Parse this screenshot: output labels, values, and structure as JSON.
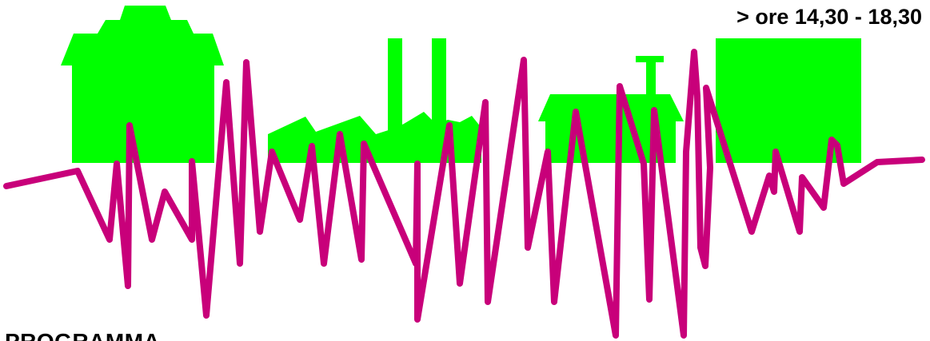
{
  "header": {
    "time_range": "> ore 14,30 - 18,30"
  },
  "footer": {
    "section_title": "PROGRAMMA"
  },
  "colors": {
    "buildings": "#00ff00",
    "seismic_line": "#c8007a",
    "background": "#ffffff",
    "text": "#000000"
  },
  "icons": {
    "skyline": "building-skyline-icon",
    "seismic": "seismograph-line-icon"
  }
}
